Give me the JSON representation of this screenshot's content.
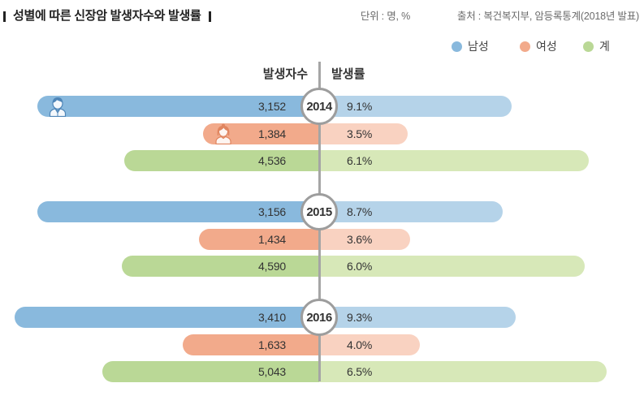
{
  "header": {
    "unit": "단위 : 명, %",
    "source": "출처 : 복건복지부, 암등록통계(2018년 발표)"
  },
  "chart_data": {
    "type": "bar",
    "title": "성별에 따른 신장암 발생자수와 발생률",
    "count_header": "발생자수",
    "rate_header": "발생률",
    "categories": [
      "2014",
      "2015",
      "2016"
    ],
    "legend": "top-right",
    "grid": false,
    "series": [
      {
        "name": "남성",
        "color": "#89b9dd",
        "light_color": "#b5d3e9",
        "icon": "male-avatar-icon",
        "counts": [
          3152,
          3156,
          3410
        ],
        "count_labels": [
          "3,152",
          "3,156",
          "3,410"
        ],
        "rates": [
          9.1,
          8.7,
          9.3
        ],
        "rate_labels": [
          "9.1%",
          "8.7%",
          "9.3%"
        ]
      },
      {
        "name": "여성",
        "color": "#f2aa8b",
        "light_color": "#f9d2c1",
        "icon": "female-avatar-icon",
        "counts": [
          1384,
          1434,
          1633
        ],
        "count_labels": [
          "1,384",
          "1,434",
          "1,633"
        ],
        "rates": [
          3.5,
          3.6,
          4.0
        ],
        "rate_labels": [
          "3.5%",
          "3.6%",
          "4.0%"
        ]
      },
      {
        "name": "계",
        "color": "#bad896",
        "light_color": "#d7e8b8",
        "counts": [
          4536,
          4590,
          5043
        ],
        "count_labels": [
          "4,536",
          "4,590",
          "5,043"
        ],
        "rates": [
          6.1,
          6.0,
          6.5
        ],
        "rate_labels": [
          "6.1%",
          "6.0%",
          "6.5%"
        ]
      }
    ]
  }
}
